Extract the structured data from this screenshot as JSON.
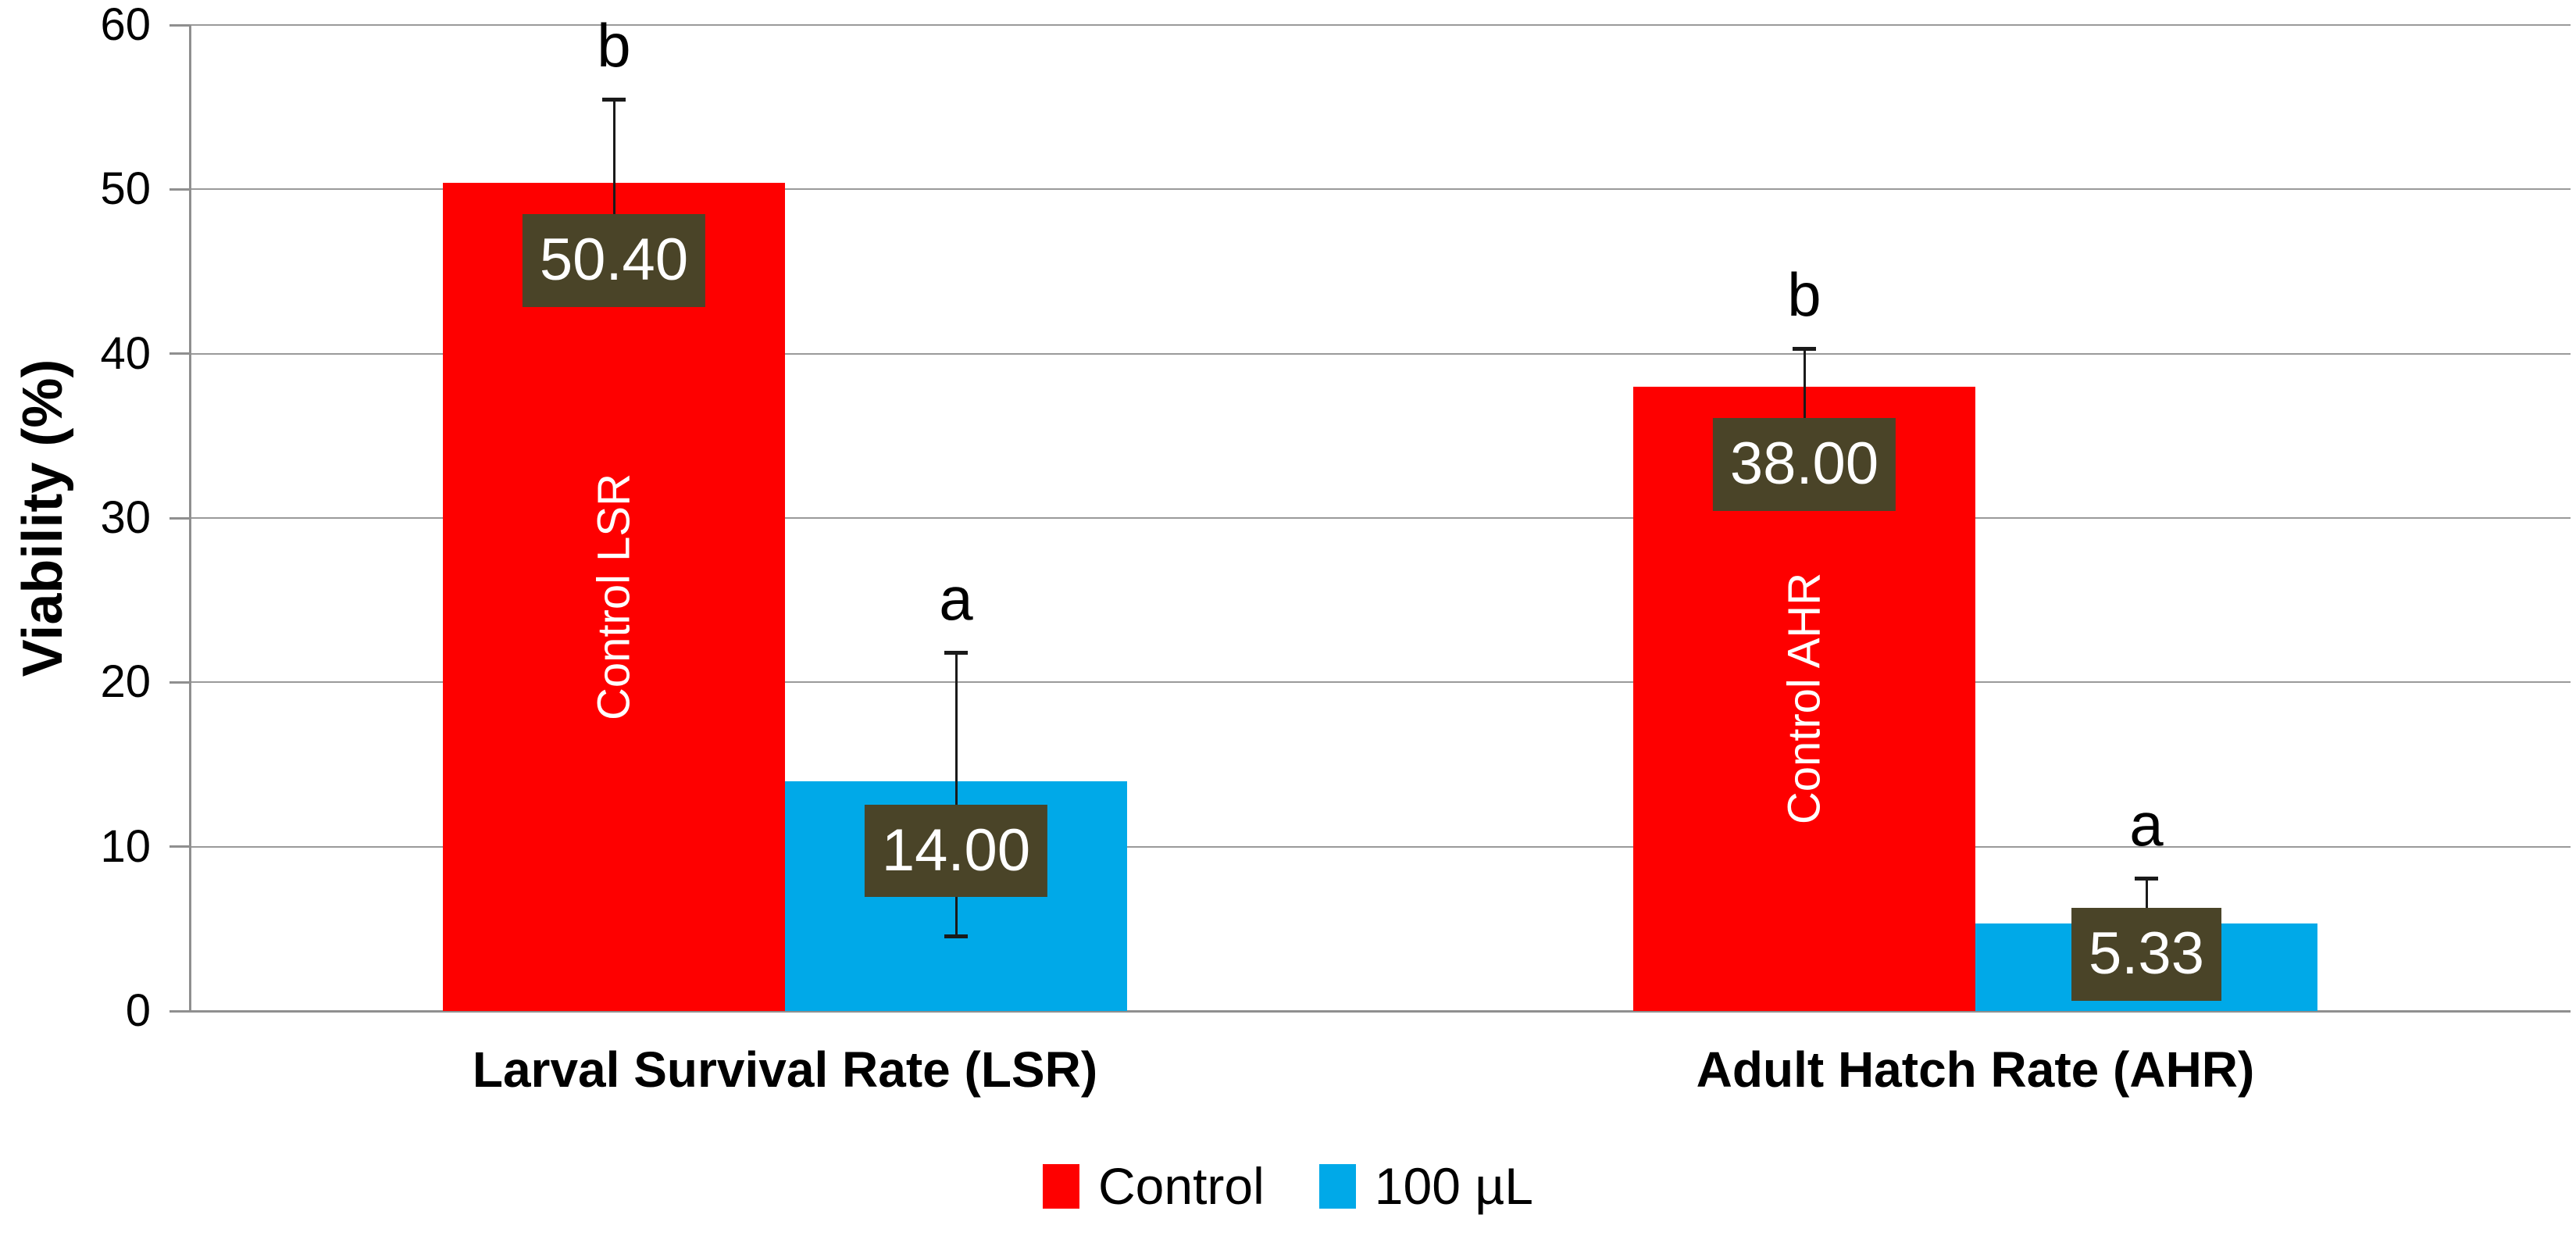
{
  "chart_data": {
    "type": "bar",
    "title": "",
    "ylabel": "Viability (%)",
    "xlabel": "",
    "ylim": [
      0,
      60
    ],
    "yticks": [
      0,
      10,
      20,
      30,
      40,
      50,
      60
    ],
    "grid": true,
    "legend_position": "bottom",
    "categories": [
      "Larval Survival Rate (LSR)",
      "Adult Hatch Rate (AHR)"
    ],
    "series": [
      {
        "name": "Control",
        "color": "#FE0000",
        "values": [
          50.4,
          38.0
        ],
        "data_labels": [
          "50.40",
          "38.00"
        ],
        "bar_texts": [
          "Control LSR",
          "Control AHR"
        ],
        "error_upper": [
          55.5,
          40.3
        ],
        "error_lower": [
          45.3,
          35.7
        ],
        "sig_letters": [
          "b",
          "b"
        ]
      },
      {
        "name": "100 µL",
        "color": "#00A9E8",
        "values": [
          14.0,
          5.33
        ],
        "data_labels": [
          "14.00",
          "5.33"
        ],
        "bar_texts": [
          "",
          ""
        ],
        "error_upper": [
          21.8,
          8.1
        ],
        "error_lower": [
          4.5,
          2.6
        ],
        "sig_letters": [
          "a",
          "a"
        ]
      }
    ],
    "colors": {
      "label_box": "#4A4428",
      "label_text": "#FFFFFF",
      "gridline": "#9A9A9A",
      "axis": "#8F8F8F",
      "text": "#000000"
    }
  }
}
